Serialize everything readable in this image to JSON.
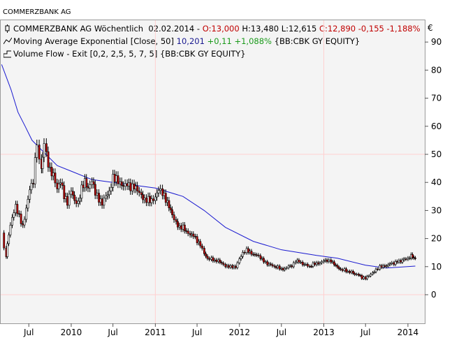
{
  "app_title": "COMMERZBANK AG",
  "legend": {
    "line1": {
      "name": "COMMERZBANK AG Wöchentlich",
      "date": "02.02.2014",
      "open": "O:13,000",
      "high": "H:13,480",
      "low": "L:12,615",
      "close": "C:12,890",
      "change": "-0,155",
      "change_pct": "-1,188%"
    },
    "line2": {
      "name": "Moving Average Exponential [Close, 50]",
      "value": "10,201",
      "change": "+0,11",
      "change_pct": "+1,088%",
      "ticker": "{BB:CBK GY EQUITY}"
    },
    "line3": {
      "name": "Volume Flow - Exit [0,2, 2,5, 5, 7, 5]",
      "ticker": "{BB:CBK GY EQUITY}"
    }
  },
  "currency_symbol": "€",
  "colors": {
    "price": "#000000",
    "up_body": "#ffffff",
    "down_body": "#c00000",
    "ema": "#1a1ad0",
    "highlight_red": "#c00000",
    "highlight_green": "#1a9a1a",
    "grid": "#ffd0d0",
    "background": "#f4f4f4"
  },
  "chart_data": {
    "type": "line",
    "style": "candlestick-weekly",
    "ylim": [
      -10,
      95
    ],
    "yticks": [
      0,
      10,
      20,
      30,
      40,
      50,
      60,
      70,
      80,
      90
    ],
    "xlim": [
      "2009-03-01",
      "2014-03-15"
    ],
    "xticks": [
      {
        "date": "2009-07-01",
        "label": "Jul"
      },
      {
        "date": "2010-01-01",
        "label": "2010"
      },
      {
        "date": "2010-07-01",
        "label": "Jul"
      },
      {
        "date": "2011-01-01",
        "label": "2011"
      },
      {
        "date": "2011-07-01",
        "label": "Jul"
      },
      {
        "date": "2012-01-01",
        "label": "2012"
      },
      {
        "date": "2012-07-01",
        "label": "Jul"
      },
      {
        "date": "2013-01-01",
        "label": "2013"
      },
      {
        "date": "2013-07-01",
        "label": "Jul"
      },
      {
        "date": "2014-01-01",
        "label": "2014"
      }
    ],
    "grid": {
      "horizontal_values": [
        0,
        50
      ],
      "vertical_dates": [
        "2011-01-01",
        "2013-01-01"
      ]
    },
    "series": [
      {
        "role": "price",
        "points": [
          [
            "2009-03-05",
            22
          ],
          [
            "2009-03-15",
            17
          ],
          [
            "2009-03-25",
            14
          ],
          [
            "2009-04-05",
            22
          ],
          [
            "2009-04-20",
            28
          ],
          [
            "2009-05-05",
            32
          ],
          [
            "2009-05-20",
            28
          ],
          [
            "2009-06-05",
            24
          ],
          [
            "2009-06-20",
            30
          ],
          [
            "2009-07-05",
            37
          ],
          [
            "2009-07-20",
            40
          ],
          [
            "2009-08-05",
            55
          ],
          [
            "2009-08-15",
            50
          ],
          [
            "2009-08-25",
            46
          ],
          [
            "2009-09-05",
            54
          ],
          [
            "2009-09-15",
            50
          ],
          [
            "2009-10-01",
            44
          ],
          [
            "2009-10-15",
            42
          ],
          [
            "2009-11-01",
            37
          ],
          [
            "2009-11-15",
            40
          ],
          [
            "2009-12-01",
            35
          ],
          [
            "2009-12-15",
            33
          ],
          [
            "2010-01-01",
            38
          ],
          [
            "2010-01-15",
            34
          ],
          [
            "2010-02-01",
            33
          ],
          [
            "2010-02-15",
            38
          ],
          [
            "2010-03-01",
            40
          ],
          [
            "2010-03-15",
            37
          ],
          [
            "2010-04-01",
            40
          ],
          [
            "2010-04-15",
            36
          ],
          [
            "2010-05-01",
            34
          ],
          [
            "2010-05-15",
            33
          ],
          [
            "2010-06-01",
            36
          ],
          [
            "2010-06-15",
            37
          ],
          [
            "2010-07-01",
            42
          ],
          [
            "2010-07-15",
            41
          ],
          [
            "2010-08-01",
            39
          ],
          [
            "2010-08-15",
            38
          ],
          [
            "2010-09-01",
            39
          ],
          [
            "2010-09-15",
            38
          ],
          [
            "2010-10-01",
            39
          ],
          [
            "2010-10-15",
            38
          ],
          [
            "2010-11-01",
            36
          ],
          [
            "2010-11-15",
            34
          ],
          [
            "2010-12-01",
            34
          ],
          [
            "2010-12-15",
            33
          ],
          [
            "2011-01-01",
            34
          ],
          [
            "2011-01-15",
            37
          ],
          [
            "2011-02-01",
            36
          ],
          [
            "2011-02-15",
            34
          ],
          [
            "2011-03-01",
            32
          ],
          [
            "2011-03-15",
            29
          ],
          [
            "2011-04-01",
            26
          ],
          [
            "2011-04-15",
            24
          ],
          [
            "2011-05-01",
            24
          ],
          [
            "2011-05-15",
            22
          ],
          [
            "2011-06-01",
            21
          ],
          [
            "2011-06-15",
            21
          ],
          [
            "2011-07-01",
            19
          ],
          [
            "2011-07-15",
            18
          ],
          [
            "2011-08-01",
            15
          ],
          [
            "2011-08-15",
            13
          ],
          [
            "2011-09-01",
            13
          ],
          [
            "2011-09-15",
            12
          ],
          [
            "2011-10-01",
            12
          ],
          [
            "2011-10-15",
            11
          ],
          [
            "2011-11-01",
            10
          ],
          [
            "2011-11-15",
            10
          ],
          [
            "2011-12-01",
            10
          ],
          [
            "2011-12-15",
            10
          ],
          [
            "2012-01-01",
            13
          ],
          [
            "2012-01-15",
            15
          ],
          [
            "2012-02-01",
            16
          ],
          [
            "2012-02-15",
            15
          ],
          [
            "2012-03-01",
            14
          ],
          [
            "2012-03-15",
            14
          ],
          [
            "2012-04-01",
            13
          ],
          [
            "2012-04-15",
            12
          ],
          [
            "2012-05-01",
            11
          ],
          [
            "2012-05-15",
            11
          ],
          [
            "2012-06-01",
            10
          ],
          [
            "2012-06-15",
            10
          ],
          [
            "2012-07-01",
            9
          ],
          [
            "2012-07-15",
            9
          ],
          [
            "2012-08-01",
            10
          ],
          [
            "2012-08-15",
            10
          ],
          [
            "2012-09-01",
            12
          ],
          [
            "2012-09-15",
            12
          ],
          [
            "2012-10-01",
            11
          ],
          [
            "2012-10-15",
            11
          ],
          [
            "2012-11-01",
            10
          ],
          [
            "2012-11-15",
            11
          ],
          [
            "2012-12-01",
            11
          ],
          [
            "2012-12-15",
            11
          ],
          [
            "2013-01-01",
            12
          ],
          [
            "2013-01-15",
            12
          ],
          [
            "2013-02-01",
            12
          ],
          [
            "2013-02-15",
            11
          ],
          [
            "2013-03-01",
            10
          ],
          [
            "2013-03-15",
            9
          ],
          [
            "2013-04-01",
            9
          ],
          [
            "2013-04-15",
            8
          ],
          [
            "2013-05-01",
            8
          ],
          [
            "2013-05-15",
            7
          ],
          [
            "2013-06-01",
            7
          ],
          [
            "2013-06-15",
            6
          ],
          [
            "2013-07-01",
            6
          ],
          [
            "2013-07-15",
            7
          ],
          [
            "2013-08-01",
            8
          ],
          [
            "2013-08-15",
            9
          ],
          [
            "2013-09-01",
            10
          ],
          [
            "2013-09-15",
            10
          ],
          [
            "2013-10-01",
            10
          ],
          [
            "2013-10-15",
            11
          ],
          [
            "2013-11-01",
            11
          ],
          [
            "2013-11-15",
            12
          ],
          [
            "2013-12-01",
            12
          ],
          [
            "2013-12-15",
            13
          ],
          [
            "2014-01-01",
            13
          ],
          [
            "2014-01-15",
            14
          ],
          [
            "2014-02-02",
            13
          ]
        ]
      },
      {
        "role": "ema",
        "name": "Moving Average Exponential [Close, 50]",
        "points": [
          [
            "2009-03-05",
            82
          ],
          [
            "2009-04-15",
            73
          ],
          [
            "2009-05-15",
            65
          ],
          [
            "2009-06-15",
            60
          ],
          [
            "2009-07-15",
            55
          ],
          [
            "2009-09-01",
            51
          ],
          [
            "2009-11-01",
            46
          ],
          [
            "2010-01-01",
            44
          ],
          [
            "2010-04-01",
            41
          ],
          [
            "2010-07-01",
            40
          ],
          [
            "2011-01-01",
            38
          ],
          [
            "2011-05-01",
            35
          ],
          [
            "2011-08-01",
            30
          ],
          [
            "2011-11-01",
            24
          ],
          [
            "2012-03-01",
            19
          ],
          [
            "2012-07-01",
            16
          ],
          [
            "2012-12-01",
            14
          ],
          [
            "2013-03-01",
            13
          ],
          [
            "2013-07-01",
            10.5
          ],
          [
            "2013-10-01",
            9.5
          ],
          [
            "2014-02-02",
            10.2
          ]
        ]
      }
    ]
  }
}
